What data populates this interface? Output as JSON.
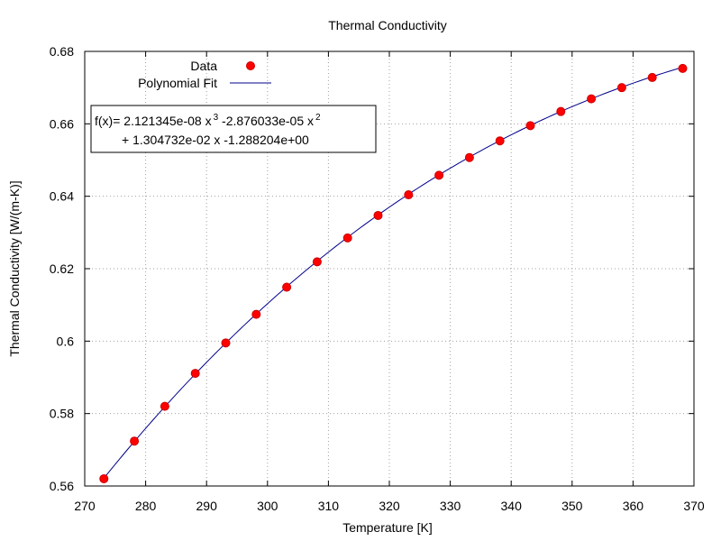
{
  "chart_data": {
    "type": "scatter",
    "title": "Thermal Conductivity",
    "xlabel": "Temperature [K]",
    "ylabel": "Thermal Conductivity [W/(m-K)]",
    "xlim": [
      270,
      370
    ],
    "ylim": [
      0.56,
      0.68
    ],
    "x_ticks": [
      "270",
      "280",
      "290",
      "300",
      "310",
      "320",
      "330",
      "340",
      "350",
      "360",
      "370"
    ],
    "y_ticks": [
      "0.56",
      "0.58",
      "0.6",
      "0.62",
      "0.64",
      "0.66",
      "0.68"
    ],
    "grid": true,
    "legend_position": "top-left",
    "series": [
      {
        "name": "Data",
        "style": "points",
        "color": "#ff0000",
        "x": [
          273.15,
          278.15,
          283.15,
          288.15,
          293.15,
          298.15,
          303.15,
          308.15,
          313.15,
          318.15,
          323.15,
          328.15,
          333.15,
          338.15,
          343.15,
          348.15,
          353.15,
          358.15,
          363.15,
          368.15
        ],
        "y": [
          0.562,
          0.5724,
          0.582,
          0.5911,
          0.5995,
          0.6074,
          0.6149,
          0.6219,
          0.6285,
          0.6347,
          0.6404,
          0.6458,
          0.6507,
          0.6553,
          0.6595,
          0.6634,
          0.6669,
          0.67,
          0.6728,
          0.6753
        ]
      },
      {
        "name": "Polynomial Fit",
        "style": "line",
        "color": "#00008b",
        "coefficients": [
          2.121345e-08,
          -2.876033e-05,
          0.01304732,
          -1.288204
        ]
      }
    ],
    "annotation": {
      "line1_prefix": "f(x)= 2.121345e-08 x",
      "line1_exp1": "3",
      "line1_mid": " -2.876033e-05 x",
      "line1_exp2": "2",
      "line2": "+ 1.304732e-02 x -1.288204e+00"
    }
  }
}
